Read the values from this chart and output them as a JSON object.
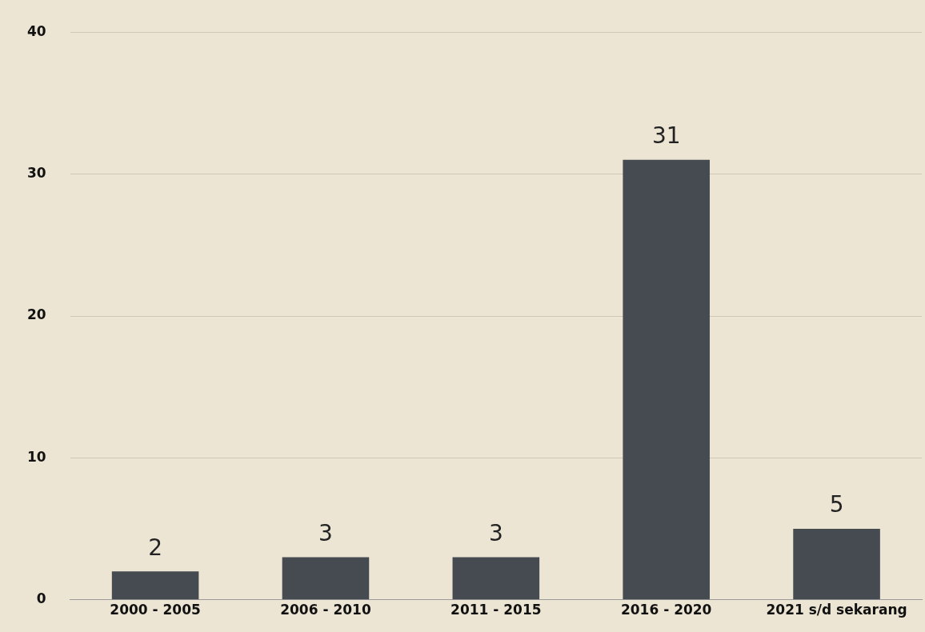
{
  "chart_data": {
    "type": "bar",
    "categories": [
      "2000 - 2005",
      "2006 - 2010",
      "2011 - 2015",
      "2016 - 2020",
      "2021 s/d sekarang"
    ],
    "values": [
      2,
      3,
      3,
      31,
      5
    ],
    "color": "#454b50",
    "ylim": [
      0,
      40
    ],
    "yticks": [
      0,
      10,
      20,
      30,
      40
    ],
    "grid": "y",
    "legend": false,
    "data_labels": true
  }
}
